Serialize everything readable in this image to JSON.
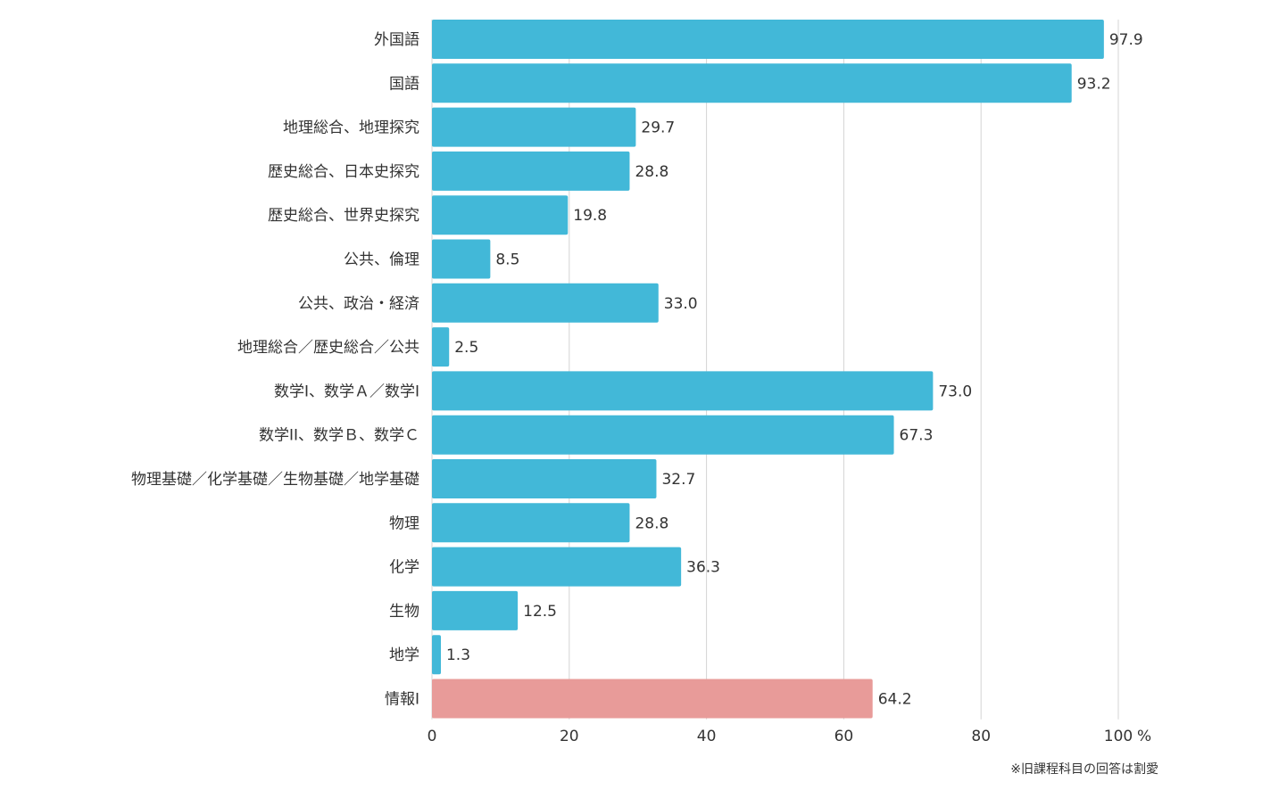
{
  "chart_data": {
    "type": "bar",
    "orientation": "horizontal",
    "categories": [
      "外国語",
      "国語",
      "地理総合、地理探究",
      "歴史総合、日本史探究",
      "歴史総合、世界史探究",
      "公共、倫理",
      "公共、政治・経済",
      "地理総合／歴史総合／公共",
      "数学Ⅰ、数学Ａ／数学Ⅰ",
      "数学ⅠⅠ、数学Ｂ、数学Ｃ",
      "物理基礎／化学基礎／生物基礎／地学基礎",
      "物理",
      "化学",
      "生物",
      "地学",
      "情報Ⅰ"
    ],
    "values": [
      97.9,
      93.2,
      29.7,
      28.8,
      19.8,
      8.5,
      33.0,
      2.5,
      73.0,
      67.3,
      32.7,
      28.8,
      36.3,
      12.5,
      1.3,
      64.2
    ],
    "value_labels": [
      "97.9",
      "93.2",
      "29.7",
      "28.8",
      "19.8",
      "8.5",
      "33.0",
      "2.5",
      "73.0",
      "67.3",
      "32.7",
      "28.8",
      "36.3",
      "12.5",
      "1.3",
      "64.2"
    ],
    "highlight_index": 15,
    "xlim": [
      0,
      100
    ],
    "xticks": [
      0,
      20,
      40,
      60,
      80,
      100
    ],
    "xtick_labels": [
      "0",
      "20",
      "40",
      "60",
      "80",
      "100"
    ],
    "x_unit": "%",
    "grid": "vertical",
    "colors": {
      "bar": "#42b8d8",
      "highlight": "#e89b99",
      "grid": "#d4d4d4",
      "text": "#333333"
    }
  },
  "footnote": "※旧課程科目の回答は割愛"
}
